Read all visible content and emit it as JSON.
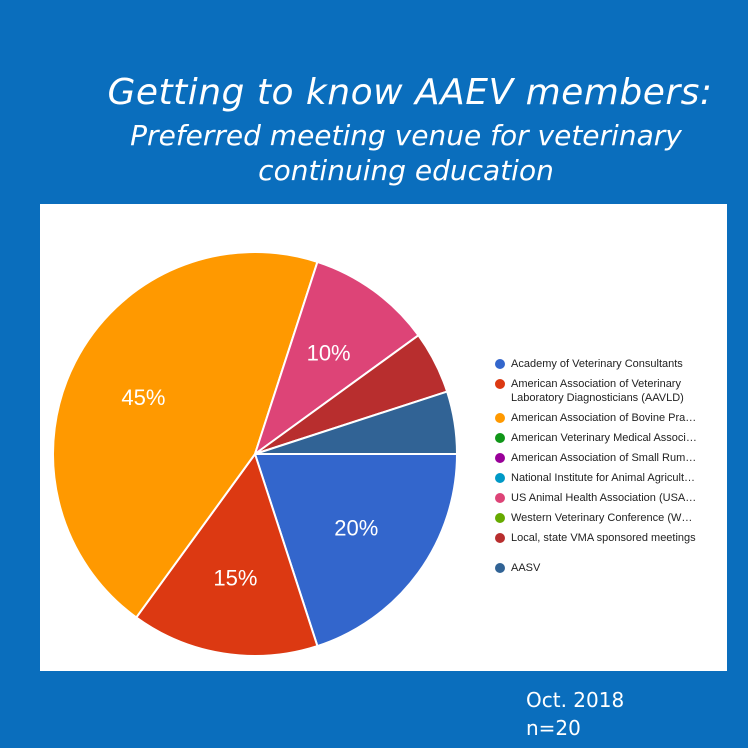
{
  "title": "Getting to know AAEV members:",
  "subtitle_line1": "Preferred meeting venue for veterinary",
  "subtitle_line2": "continuing education",
  "footnote": {
    "date": "Oct. 2018",
    "n": "n=20"
  },
  "chart_data": {
    "type": "pie",
    "title": "Getting to know AAEV members: Preferred meeting venue for veterinary continuing education",
    "slices": [
      {
        "label": "Academy of Veterinary Consultants",
        "value": 20,
        "color": "#3366cc",
        "data_label": "20%"
      },
      {
        "label": "American Association of Veterinary Laboratory Diagnosticians (AAVLD)",
        "value": 15,
        "color": "#dc3912",
        "data_label": "15%"
      },
      {
        "label": "American Association of Bovine Pra…",
        "value": 45,
        "color": "#ff9900",
        "data_label": "45%"
      },
      {
        "label": "American Veterinary Medical Associ…",
        "value": 0,
        "color": "#109618",
        "data_label": ""
      },
      {
        "label": "American Association of Small Rum…",
        "value": 0,
        "color": "#990099",
        "data_label": ""
      },
      {
        "label": "National Institute for Animal Agricult…",
        "value": 0,
        "color": "#0099c6",
        "data_label": ""
      },
      {
        "label": "US Animal Health Association (USA…",
        "value": 10,
        "color": "#dd4477",
        "data_label": "10%"
      },
      {
        "label": "Western Veterinary Conference (W…",
        "value": 0,
        "color": "#66aa00",
        "data_label": ""
      },
      {
        "label": "Local, state VMA sponsored meetings",
        "value": 5,
        "color": "#b82e2e",
        "data_label": ""
      },
      {
        "label": "AASV",
        "value": 5,
        "color": "#316395",
        "data_label": ""
      }
    ],
    "legend_position": "right"
  }
}
